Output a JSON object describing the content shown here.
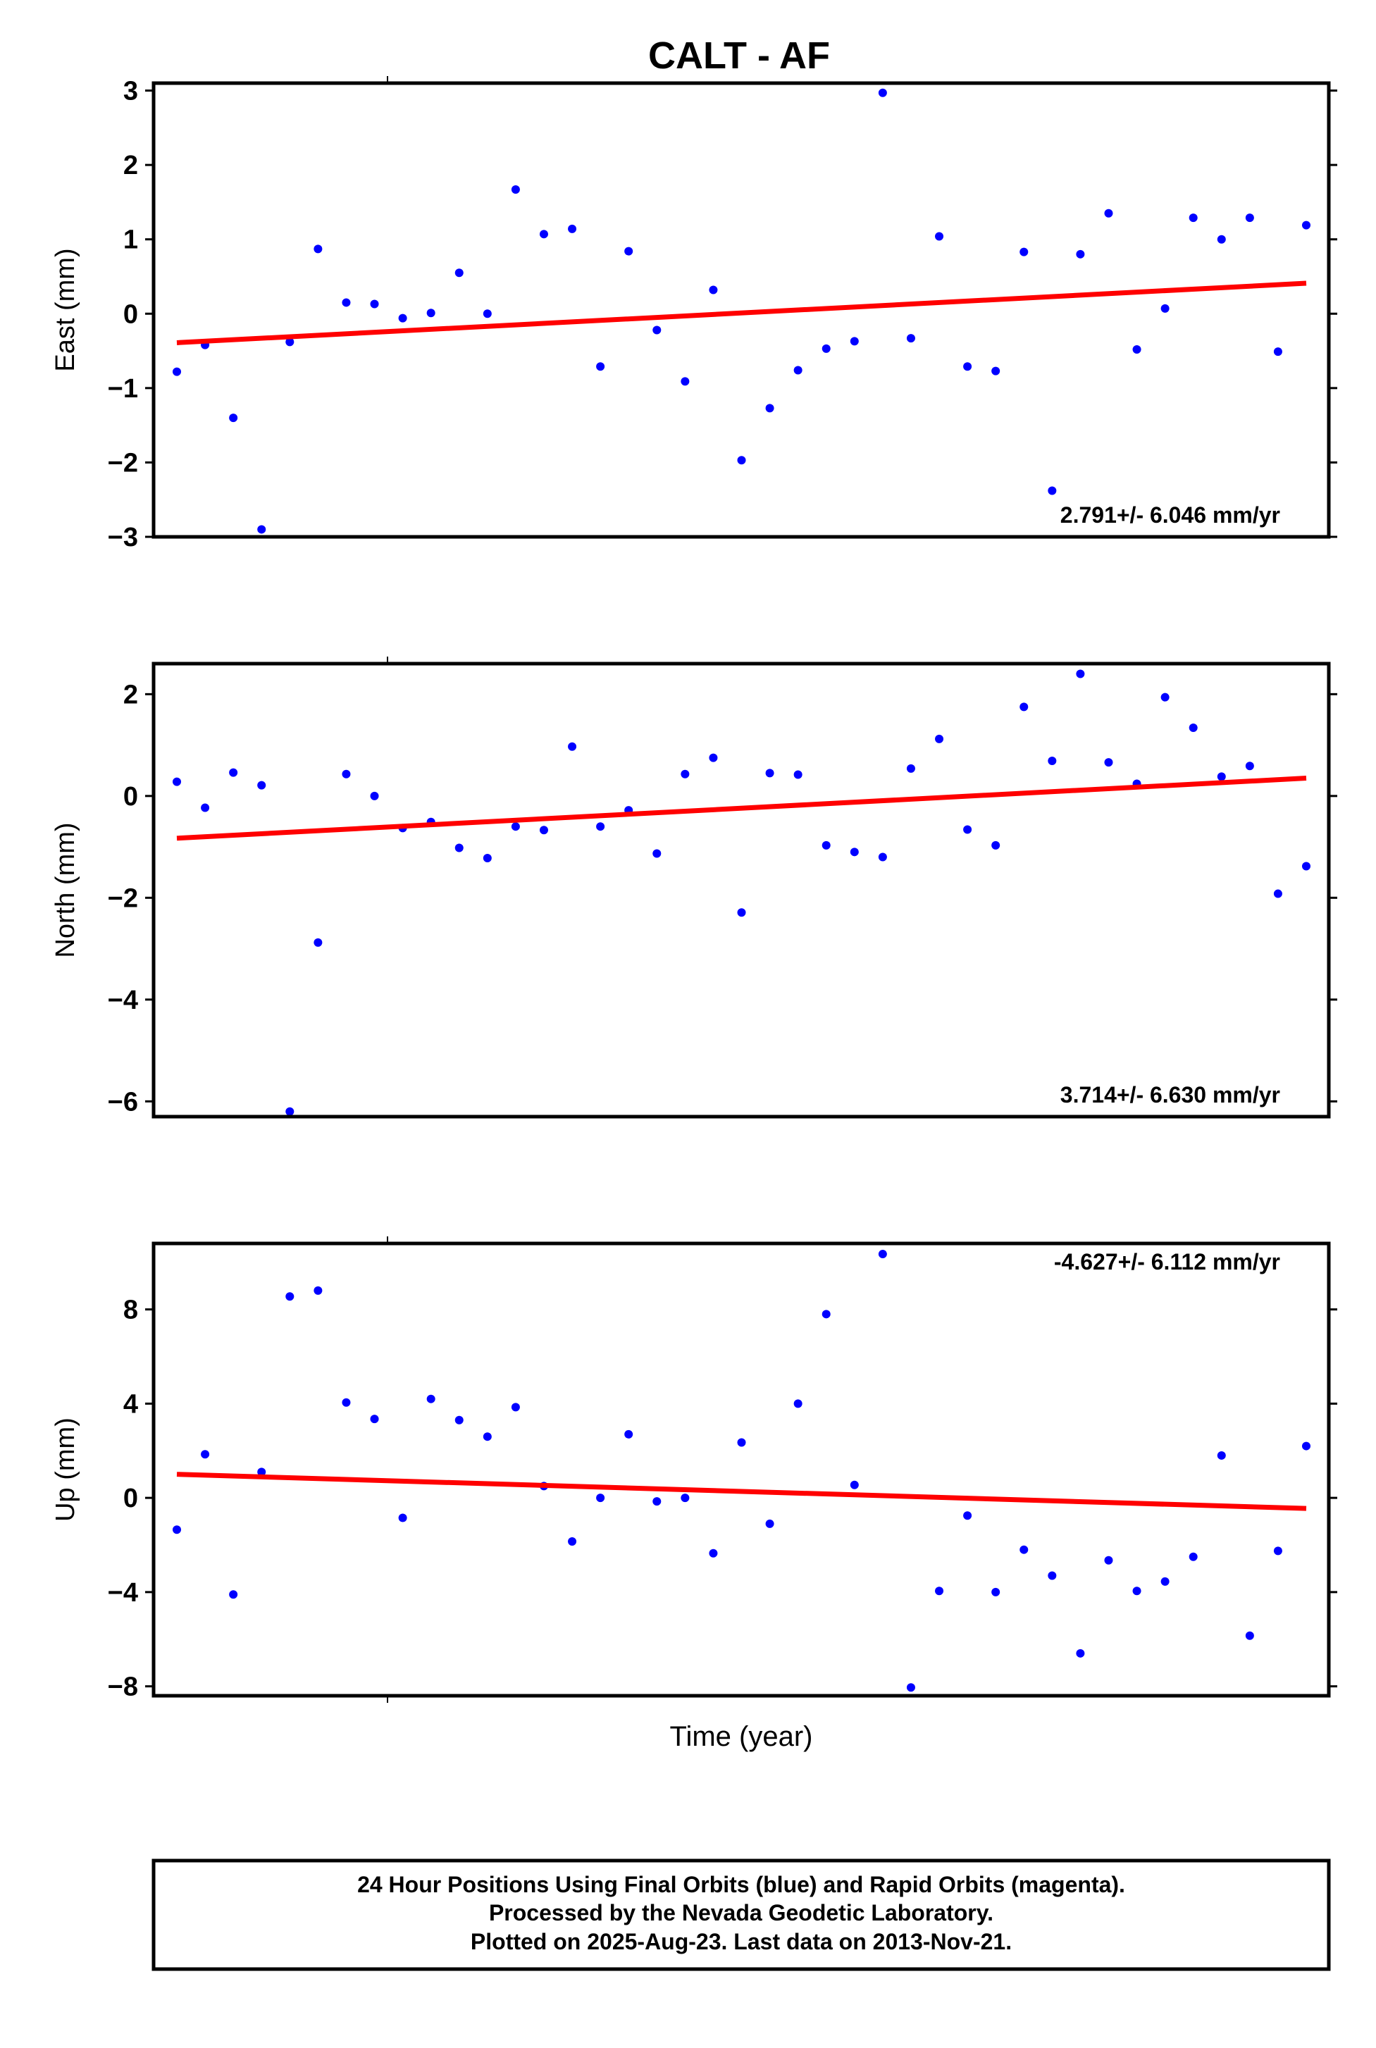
{
  "chart_data": {
    "title": "CALT - AF",
    "xlabel": "Time (year)",
    "point_color": "#0000ff",
    "fit_color": "#ff0000",
    "panels": [
      {
        "type": "scatter",
        "ylabel": "East (mm)",
        "ylim": [
          -3,
          3.1
        ],
        "yticks": [
          3,
          2,
          1,
          0,
          -1,
          -2,
          -3
        ],
        "rate_label": "2.791+/- 6.046 mm/yr",
        "rate_position": "bottom-right",
        "values": [
          -0.78,
          -0.42,
          -1.4,
          -2.9,
          -0.38,
          0.87,
          0.15,
          0.13,
          -0.06,
          0.01,
          0.55,
          0.0,
          1.67,
          1.07,
          1.14,
          -0.71,
          0.84,
          -0.22,
          -0.91,
          0.32,
          -1.97,
          -1.27,
          -0.76,
          -0.47,
          -0.37,
          2.97,
          -0.33,
          1.04,
          -0.71,
          -0.77,
          0.83,
          -2.38,
          0.8,
          1.35,
          -0.48,
          0.07,
          1.29,
          1.0,
          1.29,
          -0.51,
          1.19
        ],
        "fit": [
          -0.39,
          0.41
        ]
      },
      {
        "type": "scatter",
        "ylabel": "North (mm)",
        "ylim": [
          -6.3,
          2.6
        ],
        "yticks": [
          2,
          0,
          -2,
          -4,
          -6
        ],
        "rate_label": "3.714+/- 6.630 mm/yr",
        "rate_position": "bottom-right",
        "values": [
          0.28,
          -0.23,
          0.46,
          0.21,
          -6.2,
          -2.88,
          0.43,
          0.0,
          -0.63,
          -0.51,
          -1.02,
          -1.22,
          -0.6,
          -0.67,
          0.97,
          -0.6,
          -0.28,
          -1.13,
          0.43,
          0.75,
          -2.29,
          0.45,
          0.42,
          -0.97,
          -1.1,
          -1.2,
          0.54,
          1.12,
          -0.66,
          -0.97,
          1.75,
          0.69,
          2.4,
          0.66,
          0.24,
          1.94,
          1.34,
          0.38,
          0.59,
          -1.92,
          -1.38
        ],
        "fit": [
          -0.83,
          0.35
        ]
      },
      {
        "type": "scatter",
        "ylabel": "Up (mm)",
        "ylim": [
          -8.4,
          10.8
        ],
        "yticks": [
          8,
          4,
          0,
          -4,
          -8
        ],
        "rate_label": "-4.627+/- 6.112 mm/yr",
        "rate_position": "top-right",
        "values": [
          -1.35,
          1.85,
          -4.1,
          1.1,
          8.55,
          8.8,
          4.05,
          3.35,
          -0.85,
          4.2,
          3.3,
          2.6,
          3.85,
          0.5,
          -1.85,
          0.0,
          2.7,
          -0.15,
          0.0,
          -2.35,
          2.35,
          -1.1,
          4.0,
          7.8,
          0.55,
          10.35,
          -8.05,
          -3.95,
          -0.75,
          -4.0,
          -2.2,
          -3.3,
          -6.6,
          -2.65,
          -3.95,
          -3.55,
          -2.5,
          1.8,
          -5.85,
          -2.25,
          2.2
        ],
        "fit": [
          1.0,
          -0.45
        ]
      }
    ]
  },
  "footer": {
    "line1": "24 Hour Positions Using Final Orbits (blue) and Rapid Orbits (magenta).",
    "line2": "Processed by the Nevada Geodetic Laboratory.",
    "line3": "Plotted on 2025-Aug-23. Last data on 2013-Nov-21."
  }
}
